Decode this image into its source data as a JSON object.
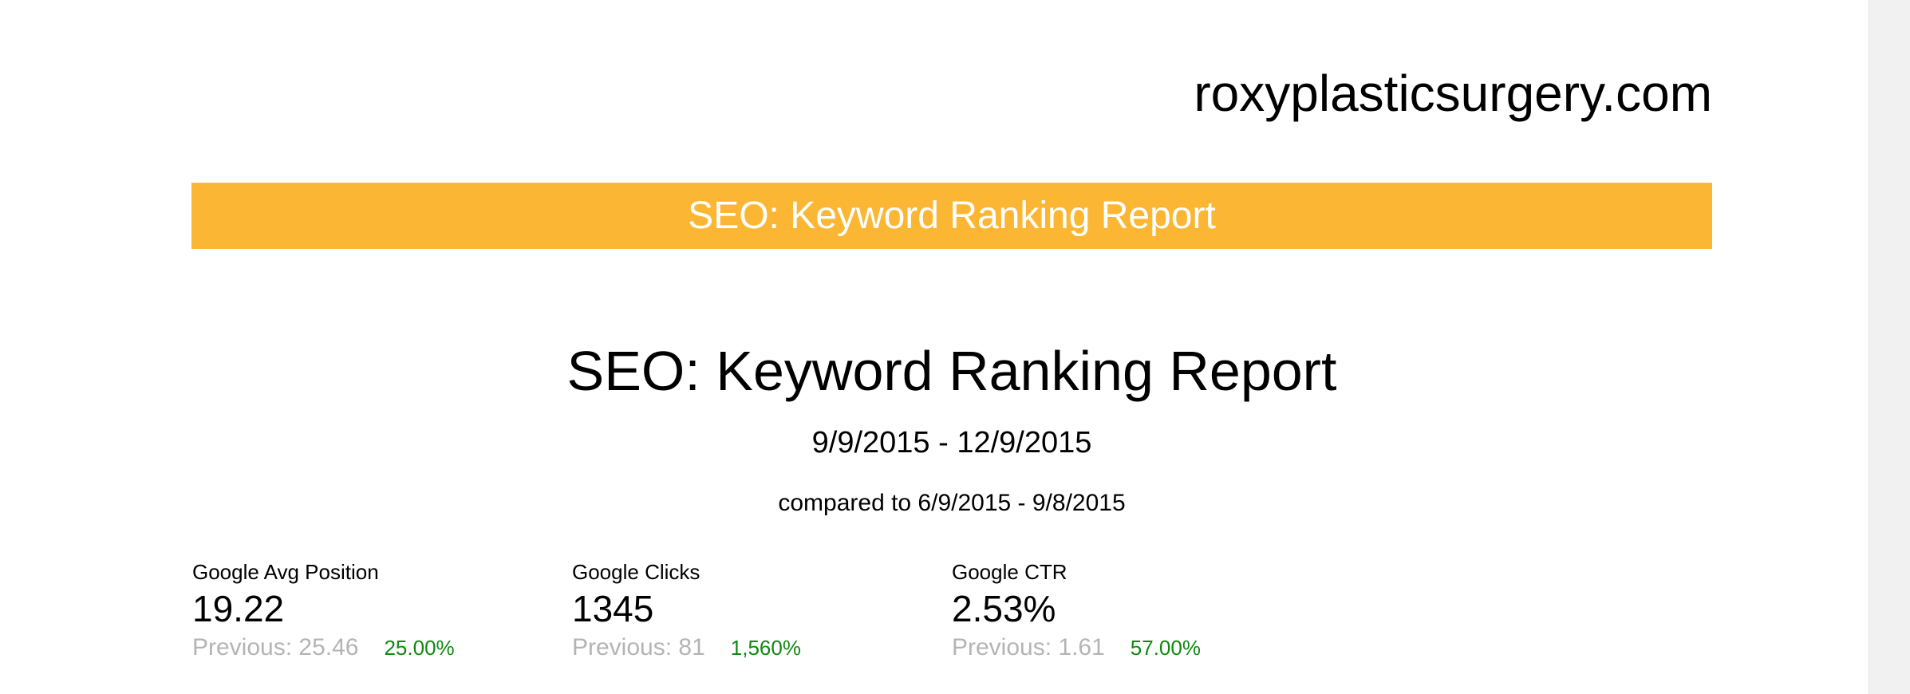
{
  "header": {
    "site_name": "roxyplasticsurgery.com"
  },
  "banner": {
    "title": "SEO: Keyword Ranking Report",
    "color": "#fbb734"
  },
  "report": {
    "title": "SEO: Keyword Ranking Report",
    "date_range": "9/9/2015 - 12/9/2015",
    "compared_to": "compared to 6/9/2015 - 9/8/2015"
  },
  "metrics": [
    {
      "label": "Google Avg Position",
      "value": "19.22",
      "previous": "Previous: 25.46",
      "change": "25.00%"
    },
    {
      "label": "Google Clicks",
      "value": "1345",
      "previous": "Previous: 81",
      "change": "1,560%"
    },
    {
      "label": "Google CTR",
      "value": "2.53%",
      "previous": "Previous: 1.61",
      "change": "57.00%"
    }
  ],
  "colors": {
    "accent": "#fbb734",
    "positive_change": "#118811",
    "previous_text": "#b4b4b4"
  }
}
